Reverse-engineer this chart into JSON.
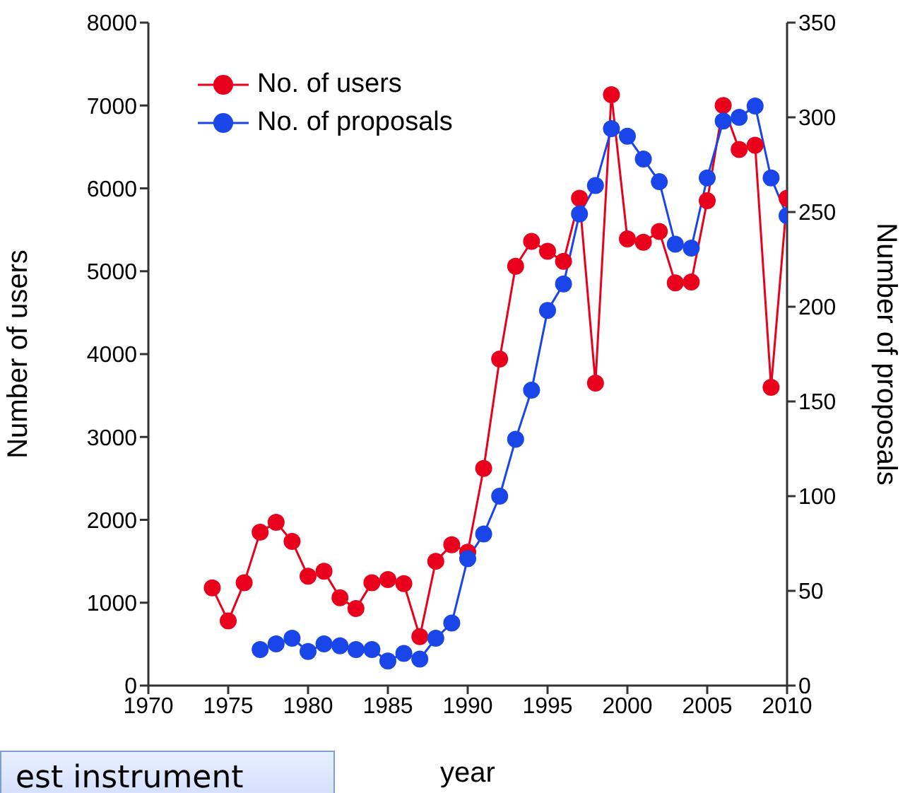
{
  "chart_data": {
    "type": "line",
    "xlabel": "year",
    "ylabel": "Number of users",
    "y2label": "Number of proposals",
    "x": [
      1974,
      1975,
      1976,
      1977,
      1978,
      1979,
      1980,
      1981,
      1982,
      1983,
      1984,
      1985,
      1986,
      1987,
      1988,
      1989,
      1990,
      1991,
      1992,
      1993,
      1994,
      1995,
      1996,
      1997,
      1998,
      1999,
      2000,
      2001,
      2002,
      2003,
      2004,
      2005,
      2006,
      2007,
      2008,
      2009,
      2010
    ],
    "series": [
      {
        "name": "No. of users",
        "color": "#e8001c",
        "values": [
          1180,
          780,
          1240,
          1850,
          1970,
          1740,
          1320,
          1380,
          1060,
          930,
          1240,
          1280,
          1230,
          590,
          1500,
          1700,
          1610,
          2620,
          3940,
          5060,
          5360,
          5240,
          5120,
          5880,
          3650,
          7130,
          5390,
          5350,
          5480,
          4860,
          4870,
          5850,
          7000,
          6470,
          6520,
          3600,
          5880
        ]
      },
      {
        "name": "No. of proposals",
        "color": "#1a45e8",
        "axis": "y2",
        "values": [
          null,
          null,
          null,
          19,
          22,
          25,
          18,
          22,
          21,
          19,
          19,
          13,
          17,
          14,
          25,
          33,
          67,
          80,
          100,
          130,
          156,
          198,
          212,
          249,
          264,
          294,
          290,
          278,
          266,
          233,
          231,
          268,
          298,
          300,
          306,
          268,
          248
        ]
      }
    ],
    "xlim": [
      1970,
      2010
    ],
    "xticks": [
      1970,
      1975,
      1980,
      1985,
      1990,
      1995,
      2000,
      2005,
      2010
    ],
    "ylim": [
      0,
      8000
    ],
    "yticks": [
      0,
      1000,
      2000,
      3000,
      4000,
      5000,
      6000,
      7000,
      8000
    ],
    "y2lim": [
      0,
      350
    ],
    "y2ticks": [
      0,
      50,
      100,
      150,
      200,
      250,
      300,
      350
    ],
    "legend": "top left",
    "marker": "circle",
    "line_style": "solid",
    "grid": false,
    "annotations": [
      "est instrument"
    ]
  }
}
